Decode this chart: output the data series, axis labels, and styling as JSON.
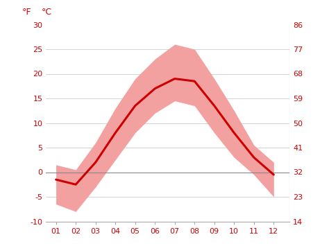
{
  "months": [
    1,
    2,
    3,
    4,
    5,
    6,
    7,
    8,
    9,
    10,
    11,
    12
  ],
  "month_labels": [
    "01",
    "02",
    "03",
    "04",
    "05",
    "06",
    "07",
    "08",
    "09",
    "10",
    "11",
    "12"
  ],
  "avg_temp": [
    -1.5,
    -2.5,
    2.0,
    8.0,
    13.5,
    17.0,
    19.0,
    18.5,
    13.5,
    8.0,
    3.0,
    -0.5
  ],
  "max_temp": [
    1.5,
    0.5,
    6.0,
    13.0,
    19.0,
    23.0,
    26.0,
    25.0,
    19.0,
    12.5,
    5.5,
    2.0
  ],
  "min_temp": [
    -6.5,
    -8.0,
    -3.0,
    2.5,
    8.0,
    12.0,
    14.5,
    13.5,
    8.0,
    3.0,
    -0.5,
    -5.0
  ],
  "line_color": "#cc0000",
  "fill_color": "#f2a0a0",
  "zero_line_color": "#888888",
  "bg_color": "#ffffff",
  "grid_color": "#cccccc",
  "tick_color": "#cc0000",
  "ylim_c": [
    -10,
    30
  ],
  "yticks_c": [
    -10,
    -5,
    0,
    5,
    10,
    15,
    20,
    25,
    30
  ],
  "yticks_f": [
    14,
    23,
    32,
    41,
    50,
    59,
    68,
    77,
    86
  ],
  "ylabel_f": "°F",
  "ylabel_c": "°C",
  "xlabel_fontsize": 8,
  "ylabel_fontsize": 8,
  "label_fontsize": 9
}
